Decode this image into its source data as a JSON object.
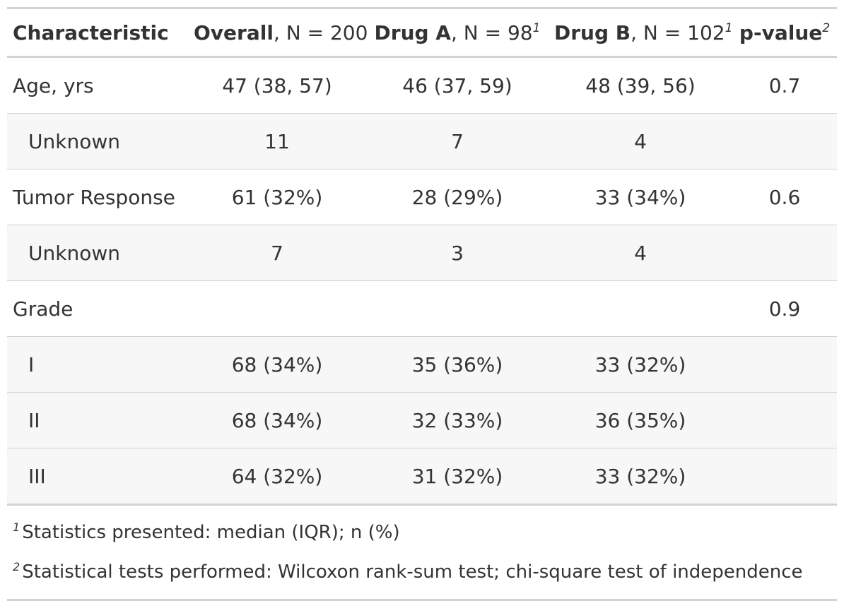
{
  "header": {
    "characteristic": "Characteristic",
    "overall_bold": "Overall",
    "overall_n": ", N = 200",
    "druga_bold": "Drug A",
    "druga_n": ", N = 98",
    "druga_sup": "1",
    "drugb_bold": "Drug B",
    "drugb_n": ", N = 102",
    "drugb_sup": "1",
    "pvalue_bold": "p-value",
    "pvalue_sup": "2"
  },
  "rows": [
    {
      "label": "Age, yrs",
      "overall": "47 (38, 57)",
      "druga": "46 (37, 59)",
      "drugb": "48 (39, 56)",
      "pvalue": "0.7"
    },
    {
      "label": "Unknown",
      "overall": "11",
      "druga": "7",
      "drugb": "4",
      "pvalue": ""
    },
    {
      "label": "Tumor Response",
      "overall": "61 (32%)",
      "druga": "28 (29%)",
      "drugb": "33 (34%)",
      "pvalue": "0.6"
    },
    {
      "label": "Unknown",
      "overall": "7",
      "druga": "3",
      "drugb": "4",
      "pvalue": ""
    },
    {
      "label": "Grade",
      "overall": "",
      "druga": "",
      "drugb": "",
      "pvalue": "0.9"
    },
    {
      "label": "I",
      "overall": "68 (34%)",
      "druga": "35 (36%)",
      "drugb": "33 (32%)",
      "pvalue": ""
    },
    {
      "label": "II",
      "overall": "68 (34%)",
      "druga": "32 (33%)",
      "drugb": "36 (35%)",
      "pvalue": ""
    },
    {
      "label": "III",
      "overall": "64 (32%)",
      "druga": "31 (32%)",
      "drugb": "33 (32%)",
      "pvalue": ""
    }
  ],
  "footnotes": [
    {
      "mark": "1",
      "text": "Statistics presented: median (IQR); n (%)"
    },
    {
      "mark": "2",
      "text": "Statistical tests performed: Wilcoxon rank-sum test; chi-square test of independence"
    }
  ]
}
